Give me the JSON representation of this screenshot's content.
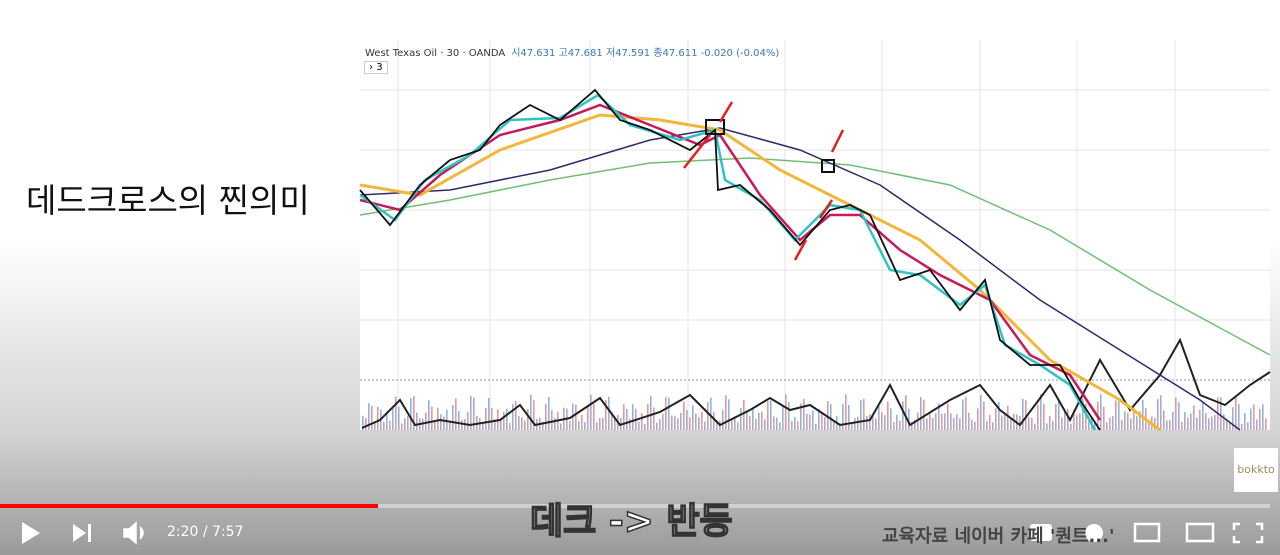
{
  "slide": {
    "heading": "데드크로스의 찐의미"
  },
  "chart_header": {
    "symbol": "West Texas Oil · 30 · OANDA",
    "ohlc": "시47.631 고47.681 저47.591 종47.611 -0.020 (-0.04%)",
    "indicator_toggle": "3"
  },
  "caption": "데크 -> 반등",
  "watermark": "bokkto",
  "overlay_text": "교육자료 네이버 카페 '퀀트...'",
  "player": {
    "time": "2:20 / 7:57"
  }
}
